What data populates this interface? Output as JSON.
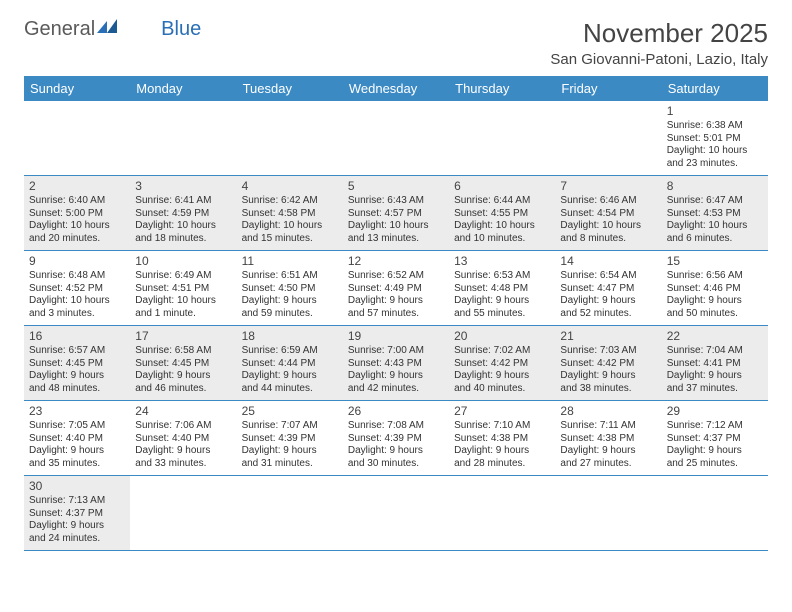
{
  "brand": {
    "part1": "General",
    "part2": "Blue"
  },
  "title": "November 2025",
  "location": "San Giovanni-Patoni, Lazio, Italy",
  "colors": {
    "header_bg": "#3b8ac4",
    "header_text": "#ffffff",
    "shade_bg": "#ececec",
    "text": "#333333",
    "brand_grey": "#5a5a5a",
    "brand_blue": "#2a6fb5"
  },
  "day_headers": [
    "Sunday",
    "Monday",
    "Tuesday",
    "Wednesday",
    "Thursday",
    "Friday",
    "Saturday"
  ],
  "weeks": [
    [
      {
        "blank": true
      },
      {
        "blank": true
      },
      {
        "blank": true
      },
      {
        "blank": true
      },
      {
        "blank": true
      },
      {
        "blank": true
      },
      {
        "day": "1",
        "sunrise": "Sunrise: 6:38 AM",
        "sunset": "Sunset: 5:01 PM",
        "daylight1": "Daylight: 10 hours",
        "daylight2": "and 23 minutes."
      }
    ],
    [
      {
        "day": "2",
        "sunrise": "Sunrise: 6:40 AM",
        "sunset": "Sunset: 5:00 PM",
        "daylight1": "Daylight: 10 hours",
        "daylight2": "and 20 minutes."
      },
      {
        "day": "3",
        "sunrise": "Sunrise: 6:41 AM",
        "sunset": "Sunset: 4:59 PM",
        "daylight1": "Daylight: 10 hours",
        "daylight2": "and 18 minutes."
      },
      {
        "day": "4",
        "sunrise": "Sunrise: 6:42 AM",
        "sunset": "Sunset: 4:58 PM",
        "daylight1": "Daylight: 10 hours",
        "daylight2": "and 15 minutes."
      },
      {
        "day": "5",
        "sunrise": "Sunrise: 6:43 AM",
        "sunset": "Sunset: 4:57 PM",
        "daylight1": "Daylight: 10 hours",
        "daylight2": "and 13 minutes."
      },
      {
        "day": "6",
        "sunrise": "Sunrise: 6:44 AM",
        "sunset": "Sunset: 4:55 PM",
        "daylight1": "Daylight: 10 hours",
        "daylight2": "and 10 minutes."
      },
      {
        "day": "7",
        "sunrise": "Sunrise: 6:46 AM",
        "sunset": "Sunset: 4:54 PM",
        "daylight1": "Daylight: 10 hours",
        "daylight2": "and 8 minutes."
      },
      {
        "day": "8",
        "sunrise": "Sunrise: 6:47 AM",
        "sunset": "Sunset: 4:53 PM",
        "daylight1": "Daylight: 10 hours",
        "daylight2": "and 6 minutes."
      }
    ],
    [
      {
        "day": "9",
        "sunrise": "Sunrise: 6:48 AM",
        "sunset": "Sunset: 4:52 PM",
        "daylight1": "Daylight: 10 hours",
        "daylight2": "and 3 minutes."
      },
      {
        "day": "10",
        "sunrise": "Sunrise: 6:49 AM",
        "sunset": "Sunset: 4:51 PM",
        "daylight1": "Daylight: 10 hours",
        "daylight2": "and 1 minute."
      },
      {
        "day": "11",
        "sunrise": "Sunrise: 6:51 AM",
        "sunset": "Sunset: 4:50 PM",
        "daylight1": "Daylight: 9 hours",
        "daylight2": "and 59 minutes."
      },
      {
        "day": "12",
        "sunrise": "Sunrise: 6:52 AM",
        "sunset": "Sunset: 4:49 PM",
        "daylight1": "Daylight: 9 hours",
        "daylight2": "and 57 minutes."
      },
      {
        "day": "13",
        "sunrise": "Sunrise: 6:53 AM",
        "sunset": "Sunset: 4:48 PM",
        "daylight1": "Daylight: 9 hours",
        "daylight2": "and 55 minutes."
      },
      {
        "day": "14",
        "sunrise": "Sunrise: 6:54 AM",
        "sunset": "Sunset: 4:47 PM",
        "daylight1": "Daylight: 9 hours",
        "daylight2": "and 52 minutes."
      },
      {
        "day": "15",
        "sunrise": "Sunrise: 6:56 AM",
        "sunset": "Sunset: 4:46 PM",
        "daylight1": "Daylight: 9 hours",
        "daylight2": "and 50 minutes."
      }
    ],
    [
      {
        "day": "16",
        "sunrise": "Sunrise: 6:57 AM",
        "sunset": "Sunset: 4:45 PM",
        "daylight1": "Daylight: 9 hours",
        "daylight2": "and 48 minutes."
      },
      {
        "day": "17",
        "sunrise": "Sunrise: 6:58 AM",
        "sunset": "Sunset: 4:45 PM",
        "daylight1": "Daylight: 9 hours",
        "daylight2": "and 46 minutes."
      },
      {
        "day": "18",
        "sunrise": "Sunrise: 6:59 AM",
        "sunset": "Sunset: 4:44 PM",
        "daylight1": "Daylight: 9 hours",
        "daylight2": "and 44 minutes."
      },
      {
        "day": "19",
        "sunrise": "Sunrise: 7:00 AM",
        "sunset": "Sunset: 4:43 PM",
        "daylight1": "Daylight: 9 hours",
        "daylight2": "and 42 minutes."
      },
      {
        "day": "20",
        "sunrise": "Sunrise: 7:02 AM",
        "sunset": "Sunset: 4:42 PM",
        "daylight1": "Daylight: 9 hours",
        "daylight2": "and 40 minutes."
      },
      {
        "day": "21",
        "sunrise": "Sunrise: 7:03 AM",
        "sunset": "Sunset: 4:42 PM",
        "daylight1": "Daylight: 9 hours",
        "daylight2": "and 38 minutes."
      },
      {
        "day": "22",
        "sunrise": "Sunrise: 7:04 AM",
        "sunset": "Sunset: 4:41 PM",
        "daylight1": "Daylight: 9 hours",
        "daylight2": "and 37 minutes."
      }
    ],
    [
      {
        "day": "23",
        "sunrise": "Sunrise: 7:05 AM",
        "sunset": "Sunset: 4:40 PM",
        "daylight1": "Daylight: 9 hours",
        "daylight2": "and 35 minutes."
      },
      {
        "day": "24",
        "sunrise": "Sunrise: 7:06 AM",
        "sunset": "Sunset: 4:40 PM",
        "daylight1": "Daylight: 9 hours",
        "daylight2": "and 33 minutes."
      },
      {
        "day": "25",
        "sunrise": "Sunrise: 7:07 AM",
        "sunset": "Sunset: 4:39 PM",
        "daylight1": "Daylight: 9 hours",
        "daylight2": "and 31 minutes."
      },
      {
        "day": "26",
        "sunrise": "Sunrise: 7:08 AM",
        "sunset": "Sunset: 4:39 PM",
        "daylight1": "Daylight: 9 hours",
        "daylight2": "and 30 minutes."
      },
      {
        "day": "27",
        "sunrise": "Sunrise: 7:10 AM",
        "sunset": "Sunset: 4:38 PM",
        "daylight1": "Daylight: 9 hours",
        "daylight2": "and 28 minutes."
      },
      {
        "day": "28",
        "sunrise": "Sunrise: 7:11 AM",
        "sunset": "Sunset: 4:38 PM",
        "daylight1": "Daylight: 9 hours",
        "daylight2": "and 27 minutes."
      },
      {
        "day": "29",
        "sunrise": "Sunrise: 7:12 AM",
        "sunset": "Sunset: 4:37 PM",
        "daylight1": "Daylight: 9 hours",
        "daylight2": "and 25 minutes."
      }
    ],
    [
      {
        "day": "30",
        "sunrise": "Sunrise: 7:13 AM",
        "sunset": "Sunset: 4:37 PM",
        "daylight1": "Daylight: 9 hours",
        "daylight2": "and 24 minutes."
      },
      {
        "blank": true
      },
      {
        "blank": true
      },
      {
        "blank": true
      },
      {
        "blank": true
      },
      {
        "blank": true
      },
      {
        "blank": true
      }
    ]
  ]
}
